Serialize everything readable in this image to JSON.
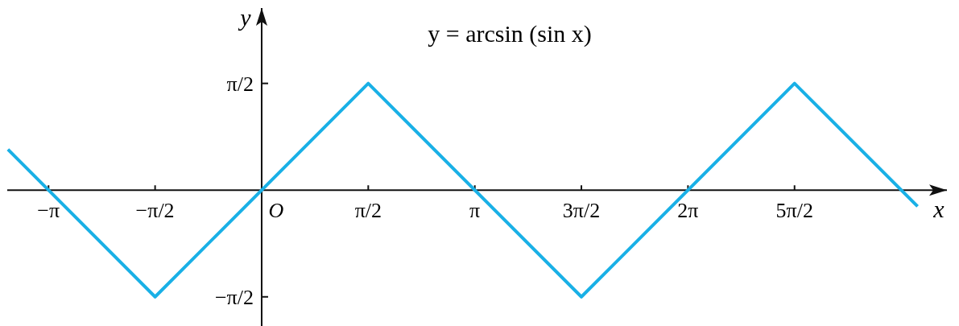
{
  "chart_data": {
    "type": "line",
    "title": "y = arcsin (sin x)",
    "xlabel": "x",
    "ylabel": "y",
    "xlim": [
      -3.75,
      10.1
    ],
    "ylim": [
      -2.0,
      2.68
    ],
    "xticks": [
      {
        "value": -3.1416,
        "label": "−π"
      },
      {
        "value": -1.5708,
        "label": "−π/2"
      },
      {
        "value": 1.5708,
        "label": "π/2"
      },
      {
        "value": 3.1416,
        "label": "π"
      },
      {
        "value": 4.7124,
        "label": "3π/2"
      },
      {
        "value": 6.2832,
        "label": "2π"
      },
      {
        "value": 7.854,
        "label": "5π/2"
      }
    ],
    "yticks": [
      {
        "value": -1.5708,
        "label": "−π/2"
      },
      {
        "value": 1.5708,
        "label": "π/2"
      }
    ],
    "grid": false,
    "annotations": [
      {
        "text": "O",
        "x": 0,
        "y": 0
      }
    ],
    "series": [
      {
        "color": "#19b0e6",
        "x": [
          -3.74,
          -1.5708,
          1.5708,
          4.7124,
          7.854,
          9.668
        ],
        "values": [
          0.6,
          -1.5708,
          1.5708,
          -1.5708,
          1.5708,
          -0.24
        ]
      }
    ]
  }
}
